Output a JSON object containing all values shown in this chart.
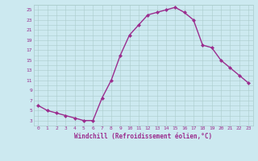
{
  "x": [
    0,
    1,
    2,
    3,
    4,
    5,
    6,
    7,
    8,
    9,
    10,
    11,
    12,
    13,
    14,
    15,
    16,
    17,
    18,
    19,
    20,
    21,
    22,
    23
  ],
  "y": [
    6,
    5,
    4.5,
    4,
    3.5,
    3,
    3,
    7.5,
    11,
    16,
    20,
    22,
    24,
    24.5,
    25,
    25.5,
    24.5,
    23,
    18,
    17.5,
    15,
    13.5,
    12,
    10.5
  ],
  "line_color": "#9b2d8e",
  "marker": "D",
  "markersize": 2,
  "bg_color": "#cce9f0",
  "grid_color": "#aacccc",
  "xlabel": "Windchill (Refroidissement éolien,°C)",
  "xlabel_color": "#9b2d8e",
  "tick_color": "#9b2d8e",
  "ylim": [
    2,
    26
  ],
  "xlim": [
    -0.5,
    23.5
  ],
  "yticks": [
    3,
    5,
    7,
    9,
    11,
    13,
    15,
    17,
    19,
    21,
    23,
    25
  ],
  "xticks": [
    0,
    1,
    2,
    3,
    4,
    5,
    6,
    7,
    8,
    9,
    10,
    11,
    12,
    13,
    14,
    15,
    16,
    17,
    18,
    19,
    20,
    21,
    22,
    23
  ]
}
